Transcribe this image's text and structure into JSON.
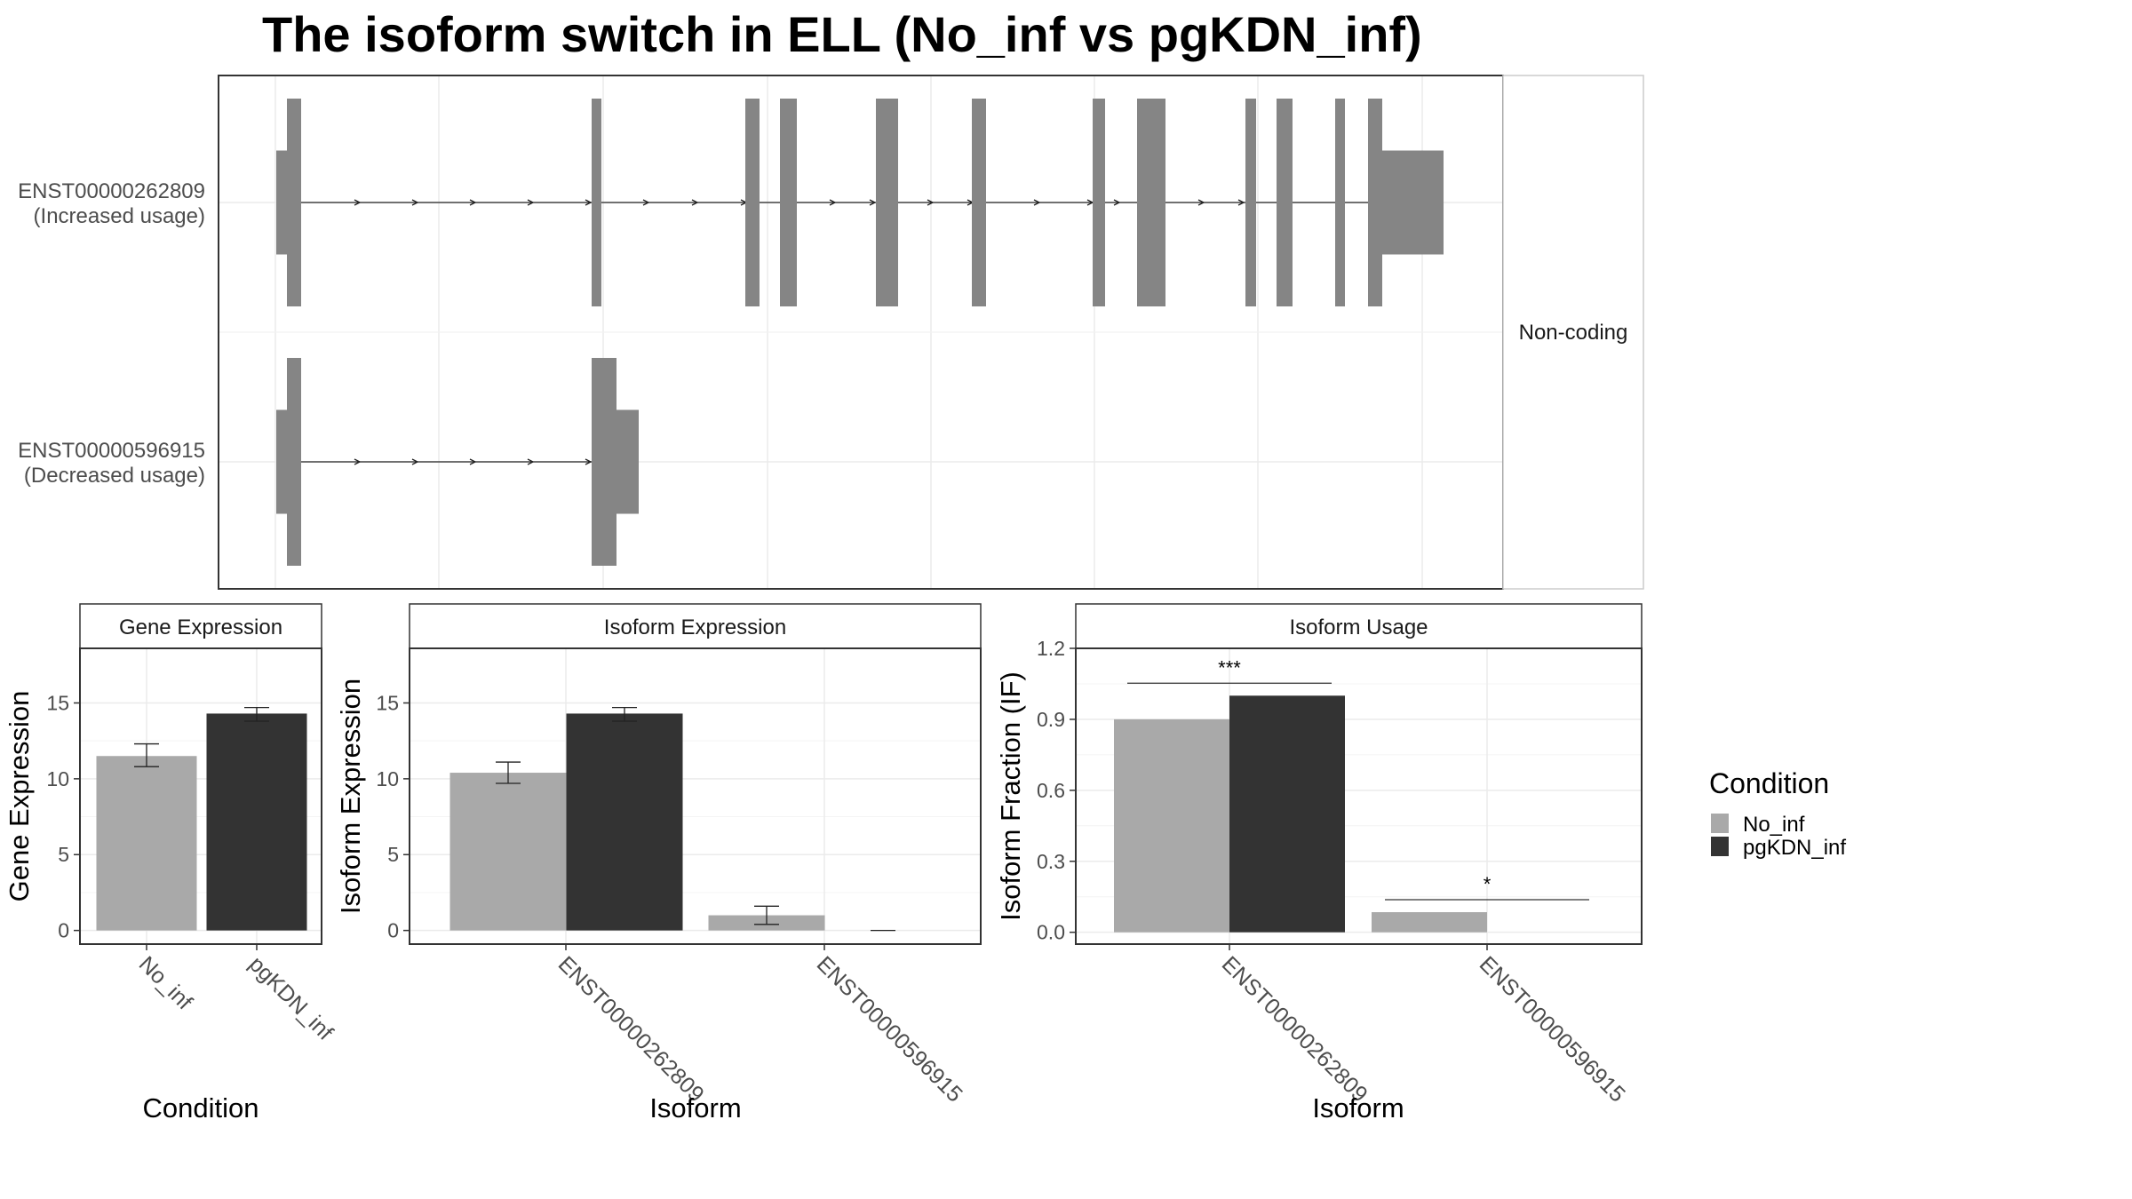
{
  "title": "The isoform switch in ELL (No_inf vs pgKDN_inf)",
  "structure": {
    "side_label": "Non-coding",
    "transcripts": [
      {
        "id": "ENST00000262809",
        "usage": "(Increased usage)"
      },
      {
        "id": "ENST00000596915",
        "usage": "(Decreased usage)"
      }
    ]
  },
  "legend": {
    "title": "Condition",
    "items": [
      {
        "label": "No_inf",
        "color": "#A9A9A9"
      },
      {
        "label": "pgKDN_inf",
        "color": "#333333"
      }
    ]
  },
  "chart_data": [
    {
      "type": "bar",
      "panel": "Gene Expression",
      "categories": [
        "No_inf",
        "pgKDN_inf"
      ],
      "series": [
        {
          "name": "No_inf",
          "values": [
            11.5,
            null
          ],
          "err_low": [
            10.8,
            null
          ],
          "err_high": [
            12.3,
            null
          ]
        },
        {
          "name": "pgKDN_inf",
          "values": [
            null,
            14.3
          ],
          "err_low": [
            null,
            13.8
          ],
          "err_high": [
            null,
            14.7
          ]
        }
      ],
      "xlabel": "Condition",
      "ylabel": "Gene Expression",
      "ylim": [
        -0.9,
        18.6
      ],
      "yticks": [
        0,
        5,
        10,
        15
      ],
      "grid": true
    },
    {
      "type": "bar",
      "panel": "Isoform Expression",
      "categories": [
        "ENST00000262809",
        "ENST00000596915"
      ],
      "series": [
        {
          "name": "No_inf",
          "values": [
            10.4,
            1.0
          ],
          "err_low": [
            9.7,
            0.4
          ],
          "err_high": [
            11.1,
            1.6
          ]
        },
        {
          "name": "pgKDN_inf",
          "values": [
            14.3,
            0.0
          ],
          "err_low": [
            13.8,
            0.0
          ],
          "err_high": [
            14.7,
            0.0
          ]
        }
      ],
      "xlabel": "Isoform",
      "ylabel": "Isoform Expression",
      "ylim": [
        -0.9,
        18.6
      ],
      "yticks": [
        0,
        5,
        10,
        15
      ],
      "grid": true
    },
    {
      "type": "bar",
      "panel": "Isoform Usage",
      "categories": [
        "ENST00000262809",
        "ENST00000596915"
      ],
      "series": [
        {
          "name": "No_inf",
          "values": [
            0.9,
            0.085
          ]
        },
        {
          "name": "pgKDN_inf",
          "values": [
            1.0,
            0.0
          ]
        }
      ],
      "significance": [
        "***",
        "*"
      ],
      "xlabel": "Isoform",
      "ylabel": "Isoform Fraction (IF)",
      "ylim": [
        -0.05,
        1.2
      ],
      "yticks": [
        "0.0",
        "0.3",
        "0.6",
        "0.9",
        "1.2"
      ],
      "grid": true
    }
  ]
}
